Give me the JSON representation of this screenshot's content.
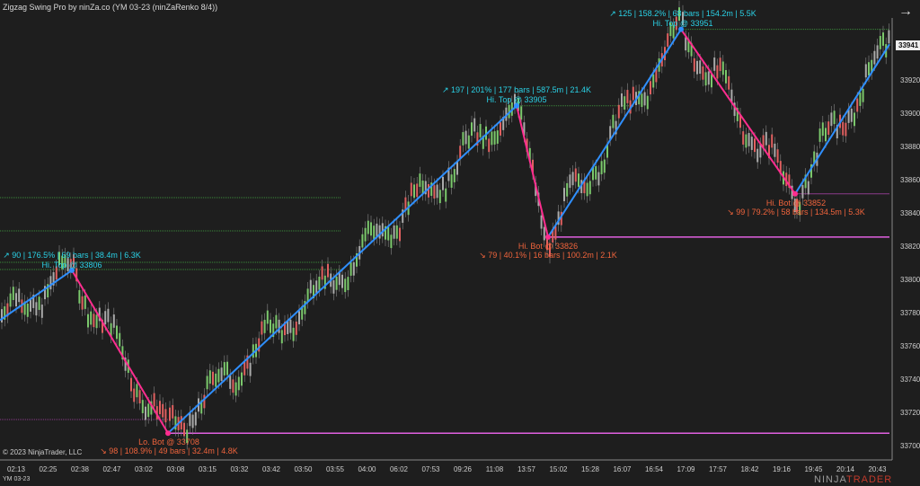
{
  "title": "Zigzag Swing Pro by ninZa.co (YM 03-23 (ninZaRenko 8/4))",
  "symbol": "YM 03-23",
  "copyright": "© 2023 NinjaTrader, LLC",
  "logo": {
    "a": "NINJA",
    "b": "TRADER"
  },
  "last_price": "33941",
  "price_axis": [
    "33920",
    "33900",
    "33880",
    "33860",
    "33840",
    "33820",
    "33800",
    "33780",
    "33760",
    "33740",
    "33720",
    "33700"
  ],
  "time_axis": [
    "02:13",
    "02:25",
    "02:38",
    "02:47",
    "03:02",
    "03:08",
    "03:15",
    "03:32",
    "03:42",
    "03:50",
    "03:55",
    "04:00",
    "06:02",
    "07:53",
    "09:26",
    "11:08",
    "13:57",
    "15:02",
    "15:28",
    "16:07",
    "16:54",
    "17:09",
    "17:57",
    "18:42",
    "19:16",
    "19:45",
    "20:14",
    "20:43"
  ],
  "colors": {
    "up_leg": "#2f8fff",
    "down_leg": "#ff2d8f",
    "bull": "#7bc86c",
    "bear": "#e06060",
    "up_text": "#2ad1e6",
    "down_text": "#f0643c"
  },
  "swings": [
    {
      "label": "Hi. Top @ 33806",
      "stats": "↗ 90  |  176.5%  |  69 bars  |  38.4m  |  6.3K",
      "dir": "up",
      "price": 33806
    },
    {
      "label": "Lo. Bot @ 33708",
      "stats": "↘ 98  |  108.9%  |  49 bars  |  32.4m  |  4.8K",
      "dir": "down",
      "price": 33708
    },
    {
      "label": "Hi. Top @ 33905",
      "stats": "↗ 197  |  201%  |  177 bars  |  587.5m  |  21.4K",
      "dir": "up",
      "price": 33905
    },
    {
      "label": "Hi. Bot @ 33826",
      "stats": "↘ 79  |  40.1%  |  16 bars  |  100.2m  |  2.1K",
      "dir": "down",
      "price": 33826
    },
    {
      "label": "Hi. Top @ 33951",
      "stats": "↗ 125  |  158.2%  |  68 bars  |  154.2m  |  5.5K",
      "dir": "up",
      "price": 33951
    },
    {
      "label": "Hi. Bot @ 33852",
      "stats": "↘ 99  |  79.2%  |  58 bars  |  134.5m  |  5.3K",
      "dir": "down",
      "price": 33852
    }
  ]
}
